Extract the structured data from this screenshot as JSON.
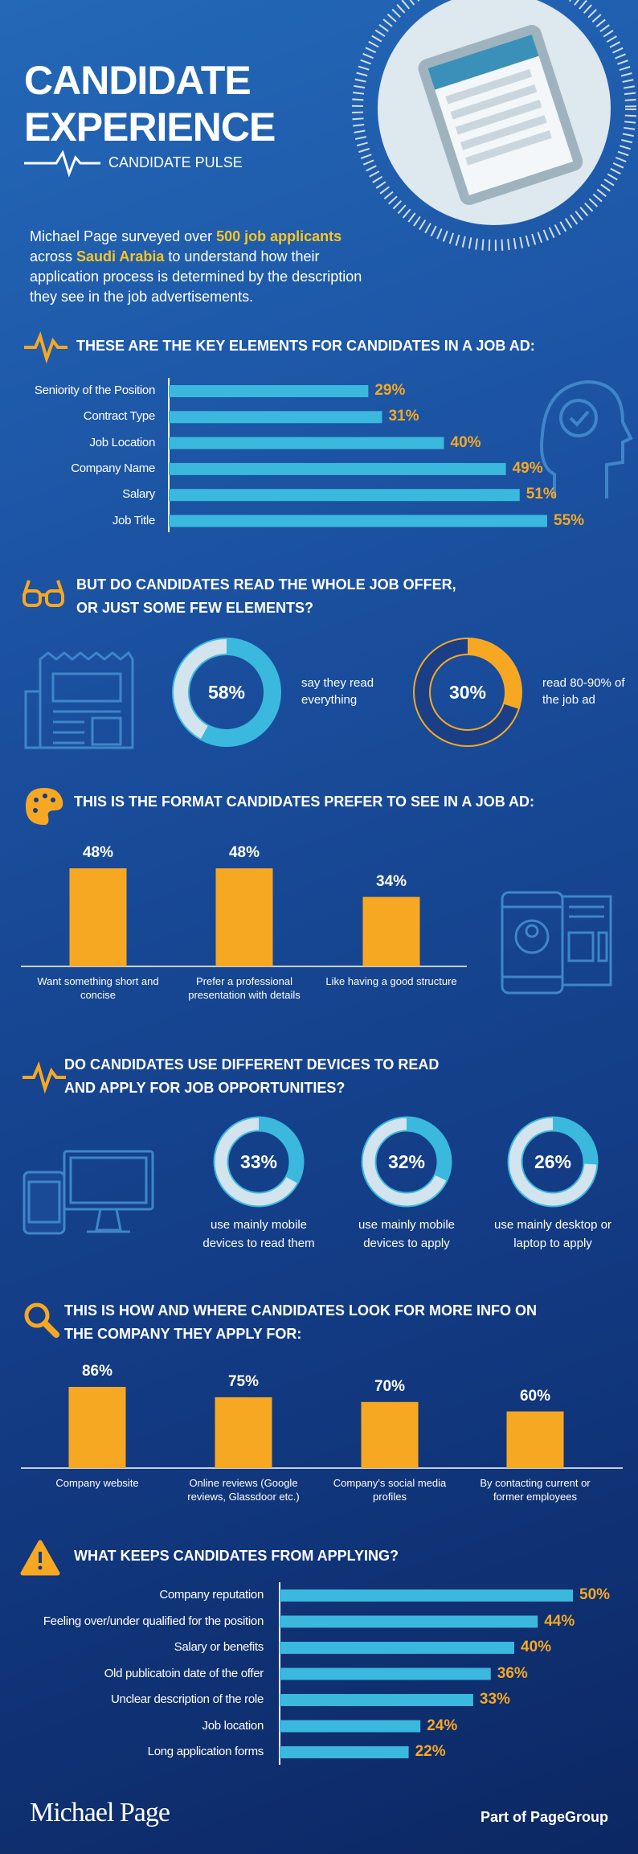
{
  "header": {
    "title_lines": [
      "CANDIDATE",
      "EXPERIENCE"
    ],
    "subtitle": "CANDIDATE PULSE"
  },
  "intro": [
    "Michael Page surveyed over ",
    "500 job applicants",
    " across ",
    "Saudi Arabia",
    " to understand how their application process is determined by the description they see in the job advertisements."
  ],
  "chart_data": [
    {
      "type": "hbar",
      "title_lines": [
        "THESE ARE THE KEY ELEMENTS FOR CANDIDATES  IN A JOB AD:"
      ],
      "categories": [
        "Seniority of the Position",
        "Contract Type",
        "Job Location",
        "Company Name",
        "Salary",
        "Job Title"
      ],
      "values": [
        29,
        31,
        40,
        49,
        51,
        55
      ],
      "value_labels": [
        "29%",
        "31%",
        "40%",
        "49%",
        "51%",
        "55%"
      ],
      "color": "#3bb8dd",
      "label_color": "#f7a823"
    },
    {
      "type": "donut",
      "title_lines": [
        "BUT DO CANDIDATES READ THE WHOLE JOB OFFER,",
        "OR JUST SOME FEW ELEMENTS?"
      ],
      "categories": [
        "say they read everything",
        "read 80-90% of the job ad"
      ],
      "values": [
        58,
        30
      ],
      "value_labels": [
        "58%",
        "30%"
      ],
      "colors": [
        "#3bb8dd",
        "#f7a823"
      ],
      "track_colors": [
        "#d3e4ee",
        "#1a3f86"
      ]
    },
    {
      "type": "bar",
      "title_lines": [
        "THIS IS THE FORMAT CANDIDATES PREFER TO SEE IN A JOB AD:"
      ],
      "categories": [
        "Want something short and concise",
        "Prefer a professional presentation with details",
        "Like having a good structure"
      ],
      "values": [
        48,
        48,
        34
      ],
      "value_labels": [
        "48%",
        "48%",
        "34%"
      ],
      "color": "#f7a823"
    },
    {
      "type": "donut",
      "title_lines": [
        "DO CANDIDATES USE DIFFERENT DEVICES TO READ",
        "AND APPLY FOR JOB OPPORTUNITIES?"
      ],
      "categories": [
        "use mainly mobile devices to read them",
        "use mainly mobile devices to apply",
        "use mainly desktop or laptop to apply"
      ],
      "values": [
        33,
        32,
        26
      ],
      "value_labels": [
        "33%",
        "32%",
        "26%"
      ],
      "colors": [
        "#3bb8dd",
        "#3bb8dd",
        "#3bb8dd"
      ],
      "track_colors": [
        "#d3e4ee",
        "#d3e4ee",
        "#d3e4ee"
      ]
    },
    {
      "type": "bar",
      "title_lines": [
        "THIS IS HOW AND WHERE CANDIDATES LOOK FOR MORE INFO ON",
        "THE COMPANY THEY APPLY FOR:"
      ],
      "categories": [
        "Company website",
        "Online reviews (Google reviews, Glassdoor etc.)",
        "Company's social media profiles",
        "By contacting current or former employees"
      ],
      "values": [
        86,
        75,
        70,
        60
      ],
      "value_labels": [
        "86%",
        "75%",
        "70%",
        "60%"
      ],
      "color": "#f7a823"
    },
    {
      "type": "hbar",
      "title_lines": [
        "WHAT KEEPS CANDIDATES  FROM APPLYING?"
      ],
      "categories": [
        "Company reputation",
        "Feeling over/under qualified for the position",
        "Salary or benefits",
        "Old publicatoin date of the offer",
        "Unclear description of the role",
        "Job location",
        "Long application forms"
      ],
      "values": [
        50,
        44,
        40,
        36,
        33,
        24,
        22
      ],
      "value_labels": [
        "50%",
        "44%",
        "40%",
        "36%",
        "33%",
        "24%",
        "22%"
      ],
      "color": "#3bb8dd",
      "label_color": "#f7a823"
    }
  ],
  "footer": {
    "logo": "Michael Page",
    "tagline": "Part of PageGroup"
  }
}
